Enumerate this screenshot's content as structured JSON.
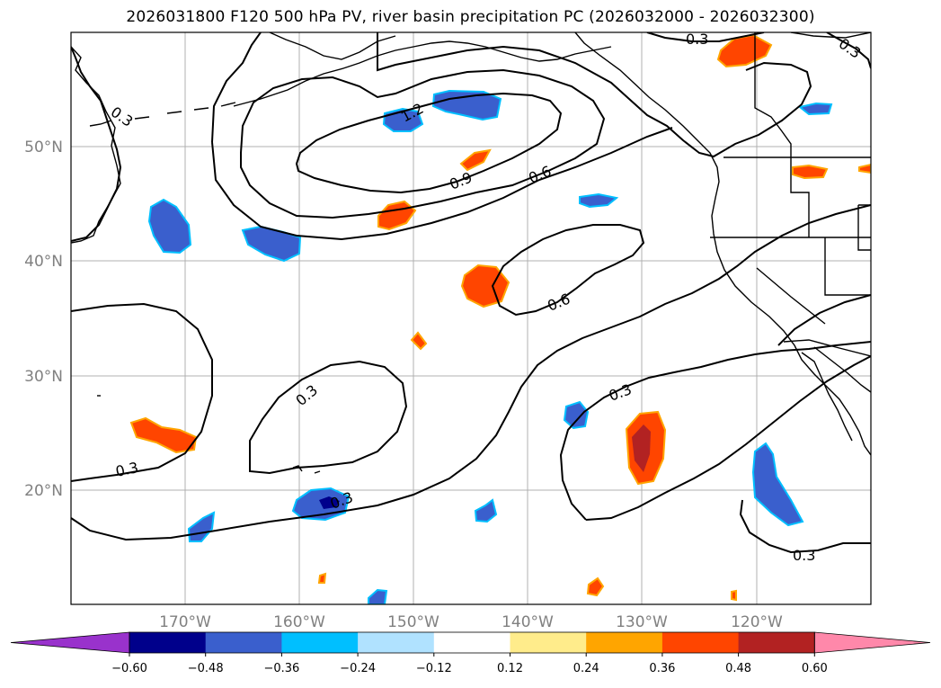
{
  "title": "2026031800 F120 500 hPa PV, river basin precipitation PC (2026032000 - 2026032300)",
  "map": {
    "lon_range": [
      -180,
      -110
    ],
    "lat_range": [
      10,
      60
    ],
    "lat_labels": [
      "50°N",
      "40°N",
      "30°N",
      "20°N"
    ],
    "lat_values": [
      50,
      40,
      30,
      20
    ],
    "lon_labels": [
      "170°W",
      "160°W",
      "150°W",
      "140°W",
      "130°W",
      "120°W"
    ],
    "lon_values": [
      -170,
      -160,
      -150,
      -140,
      -130,
      -120
    ],
    "grid": true
  },
  "contour_labels": [
    "0.3",
    "0.3",
    "1.2",
    "0.9",
    "0.6",
    "0.6",
    "0.3",
    "0.3",
    "0.3",
    "0.3",
    "0.3",
    "0.3"
  ],
  "colorbar": {
    "tick_labels": [
      "−0.60",
      "−0.48",
      "−0.36",
      "−0.24",
      "−0.12",
      "0.12",
      "0.24",
      "0.36",
      "0.48",
      "0.60"
    ],
    "colors": [
      "#9932cc",
      "#00008b",
      "#3a5fcd",
      "#00bfff",
      "#b0e2ff",
      "#ffffff",
      "#ffec8b",
      "#ffa500",
      "#ff4500",
      "#b22222",
      "#ff88aa"
    ]
  }
}
